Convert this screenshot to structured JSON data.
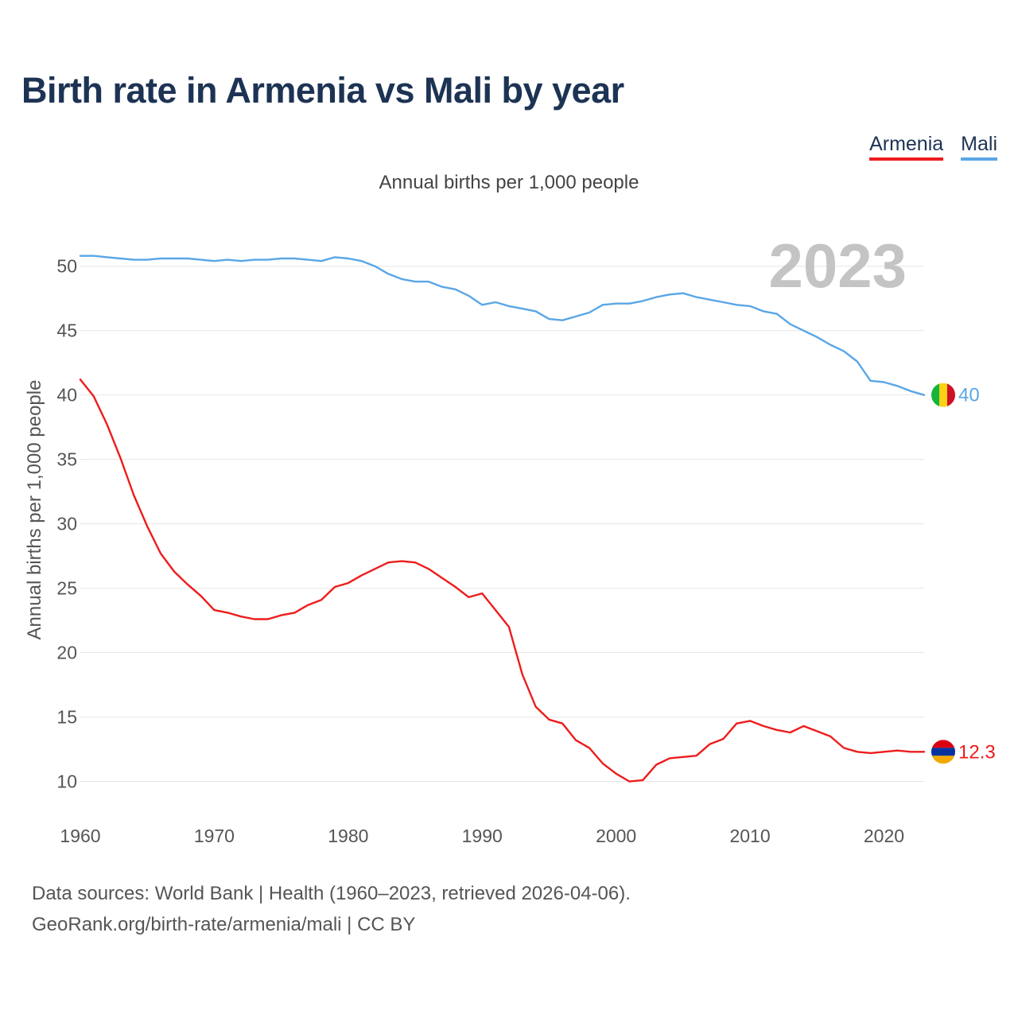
{
  "title": "Birth rate in Armenia vs Mali by year",
  "legend": {
    "armenia": "Armenia",
    "mali": "Mali"
  },
  "source_line1": "Data sources: World Bank | Health (1960–2023, retrieved 2026-04-06).",
  "source_line2": "GeoRank.org/birth-rate/armenia/mali | CC BY",
  "colors": {
    "armenia": "#ee1c1c",
    "mali": "#5aa6e6",
    "title": "#1d3354"
  },
  "chart_data": {
    "type": "line",
    "title": "Birth rate in Armenia vs Mali by year",
    "subtitle": "Annual births per 1,000 people",
    "ylabel": "Annual births per 1,000 people",
    "xlabel": "",
    "year_label": "2023",
    "xlim": [
      1960,
      2023
    ],
    "ylim": [
      6.7,
      53.5
    ],
    "x_ticks": [
      1960,
      1970,
      1980,
      1990,
      2000,
      2010,
      2020
    ],
    "y_ticks": [
      10,
      15,
      20,
      25,
      30,
      35,
      40,
      45,
      50
    ],
    "x": [
      1960,
      1961,
      1962,
      1963,
      1964,
      1965,
      1966,
      1967,
      1968,
      1969,
      1970,
      1971,
      1972,
      1973,
      1974,
      1975,
      1976,
      1977,
      1978,
      1979,
      1980,
      1981,
      1982,
      1983,
      1984,
      1985,
      1986,
      1987,
      1988,
      1989,
      1990,
      1991,
      1992,
      1993,
      1994,
      1995,
      1996,
      1997,
      1998,
      1999,
      2000,
      2001,
      2002,
      2003,
      2004,
      2005,
      2006,
      2007,
      2008,
      2009,
      2010,
      2011,
      2012,
      2013,
      2014,
      2015,
      2016,
      2017,
      2018,
      2019,
      2020,
      2021,
      2022,
      2023
    ],
    "series": [
      {
        "name": "Armenia",
        "color": "#ee1c1c",
        "end_label": "12.3",
        "values": [
          41.2,
          39.9,
          37.7,
          35.1,
          32.2,
          29.8,
          27.7,
          26.3,
          25.3,
          24.4,
          23.3,
          23.1,
          22.8,
          22.6,
          22.6,
          22.9,
          23.1,
          23.7,
          24.1,
          25.1,
          25.4,
          26.0,
          26.5,
          27.0,
          27.1,
          27.0,
          26.5,
          25.8,
          25.1,
          24.3,
          24.6,
          23.3,
          22.0,
          18.3,
          15.8,
          14.8,
          14.5,
          13.2,
          12.6,
          11.4,
          10.6,
          10.0,
          10.1,
          11.3,
          11.8,
          11.9,
          12.0,
          12.9,
          13.3,
          14.5,
          14.7,
          14.3,
          14.0,
          13.8,
          14.3,
          13.9,
          13.5,
          12.6,
          12.3,
          12.2,
          12.3,
          12.4,
          12.3,
          12.3
        ]
      },
      {
        "name": "Mali",
        "color": "#5aa6e6",
        "end_label": "40",
        "values": [
          50.8,
          50.8,
          50.7,
          50.6,
          50.5,
          50.5,
          50.6,
          50.6,
          50.6,
          50.5,
          50.4,
          50.5,
          50.4,
          50.5,
          50.5,
          50.6,
          50.6,
          50.5,
          50.4,
          50.7,
          50.6,
          50.4,
          50.0,
          49.4,
          49.0,
          48.8,
          48.8,
          48.4,
          48.2,
          47.7,
          47.0,
          47.2,
          46.9,
          46.7,
          46.5,
          45.9,
          45.8,
          46.1,
          46.4,
          47.0,
          47.1,
          47.1,
          47.3,
          47.6,
          47.8,
          47.9,
          47.6,
          47.4,
          47.2,
          47.0,
          46.9,
          46.5,
          46.3,
          45.5,
          45.0,
          44.5,
          43.9,
          43.4,
          42.6,
          41.1,
          41.0,
          40.7,
          40.3,
          40.0
        ]
      }
    ]
  }
}
